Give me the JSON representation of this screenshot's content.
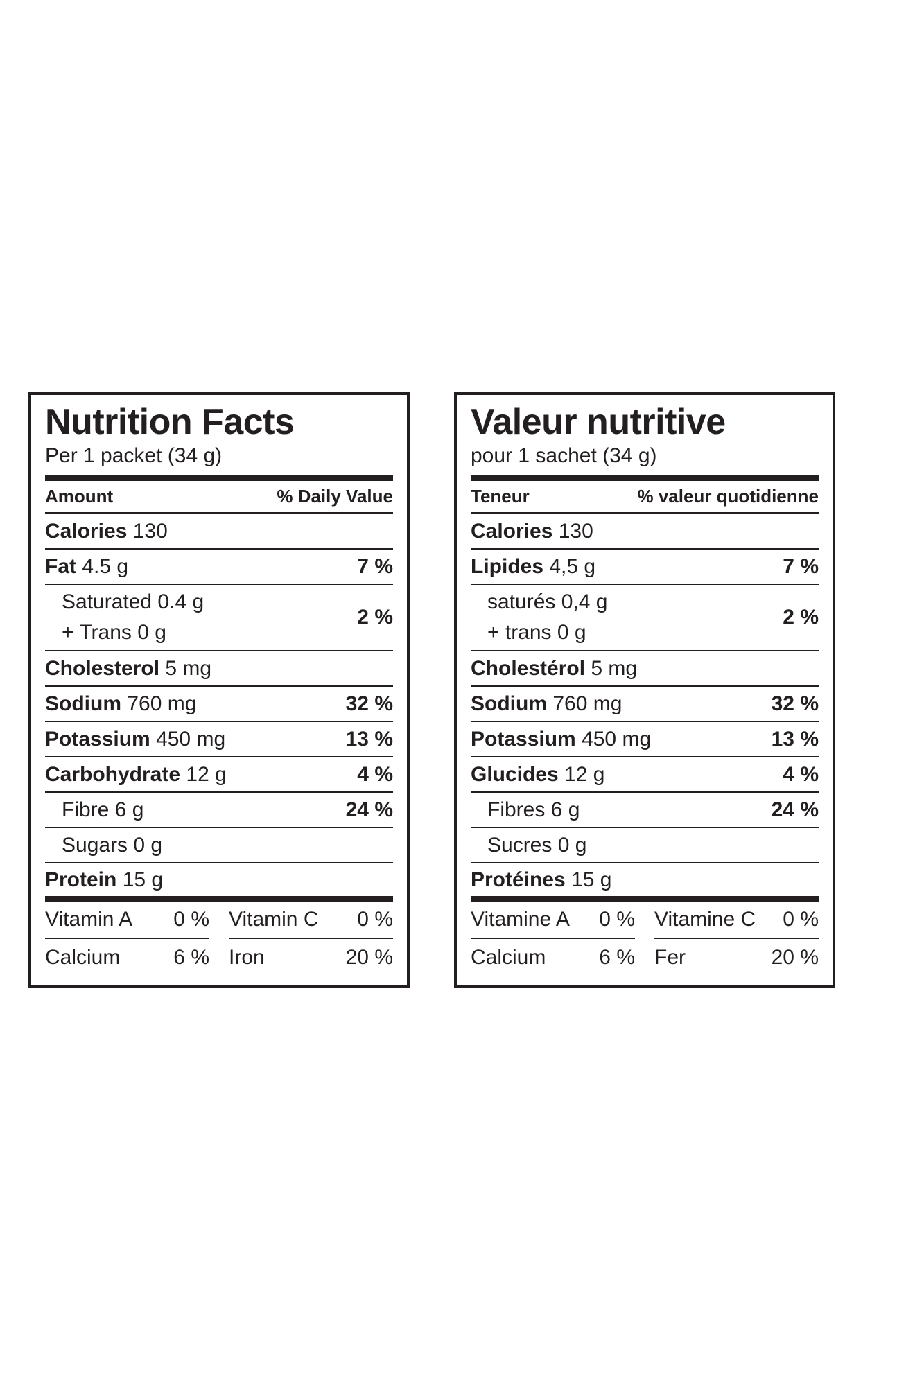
{
  "chart_data": [
    {
      "type": "table",
      "title": "Nutrition Facts",
      "serving": "Per 1 packet (34 g)",
      "header": {
        "amount": "Amount",
        "dv": "% Daily Value"
      },
      "calories": {
        "label": "Calories",
        "value": "130"
      },
      "fat": {
        "label": "Fat",
        "value": "4.5 g",
        "dv": "7 %"
      },
      "saturated": {
        "label": "Saturated 0.4 g",
        "trans": "+ Trans 0 g",
        "dv": "2 %"
      },
      "cholesterol": {
        "label": "Cholesterol",
        "value": "5 mg"
      },
      "sodium": {
        "label": "Sodium",
        "value": "760 mg",
        "dv": "32 %"
      },
      "potassium": {
        "label": "Potassium",
        "value": "450 mg",
        "dv": "13 %"
      },
      "carbohydrate": {
        "label": "Carbohydrate",
        "value": "12 g",
        "dv": "4 %"
      },
      "fibre": {
        "label": "Fibre 6 g",
        "dv": "24 %"
      },
      "sugars": {
        "label": "Sugars 0 g"
      },
      "protein": {
        "label": "Protein",
        "value": "15 g"
      },
      "vitamins": [
        {
          "label": "Vitamin A",
          "dv": "0 %"
        },
        {
          "label": "Vitamin C",
          "dv": "0 %"
        },
        {
          "label": "Calcium",
          "dv": "6 %"
        },
        {
          "label": "Iron",
          "dv": "20 %"
        }
      ]
    },
    {
      "type": "table",
      "title": "Valeur nutritive",
      "serving": "pour 1 sachet (34 g)",
      "header": {
        "amount": "Teneur",
        "dv": "% valeur quotidienne"
      },
      "calories": {
        "label": "Calories",
        "value": "130"
      },
      "fat": {
        "label": "Lipides",
        "value": "4,5 g",
        "dv": "7 %"
      },
      "saturated": {
        "label": "saturés 0,4 g",
        "trans": "+ trans 0 g",
        "dv": "2 %"
      },
      "cholesterol": {
        "label": "Cholestérol",
        "value": "5 mg"
      },
      "sodium": {
        "label": "Sodium",
        "value": "760 mg",
        "dv": "32 %"
      },
      "potassium": {
        "label": "Potassium",
        "value": "450 mg",
        "dv": "13 %"
      },
      "carbohydrate": {
        "label": "Glucides",
        "value": "12 g",
        "dv": "4 %"
      },
      "fibre": {
        "label": "Fibres 6 g",
        "dv": "24 %"
      },
      "sugars": {
        "label": "Sucres 0 g"
      },
      "protein": {
        "label": "Protéines",
        "value": "15 g"
      },
      "vitamins": [
        {
          "label": "Vitamine A",
          "dv": "0 %"
        },
        {
          "label": "Vitamine C",
          "dv": "0 %"
        },
        {
          "label": "Calcium",
          "dv": "6 %"
        },
        {
          "label": "Fer",
          "dv": "20 %"
        }
      ]
    }
  ]
}
